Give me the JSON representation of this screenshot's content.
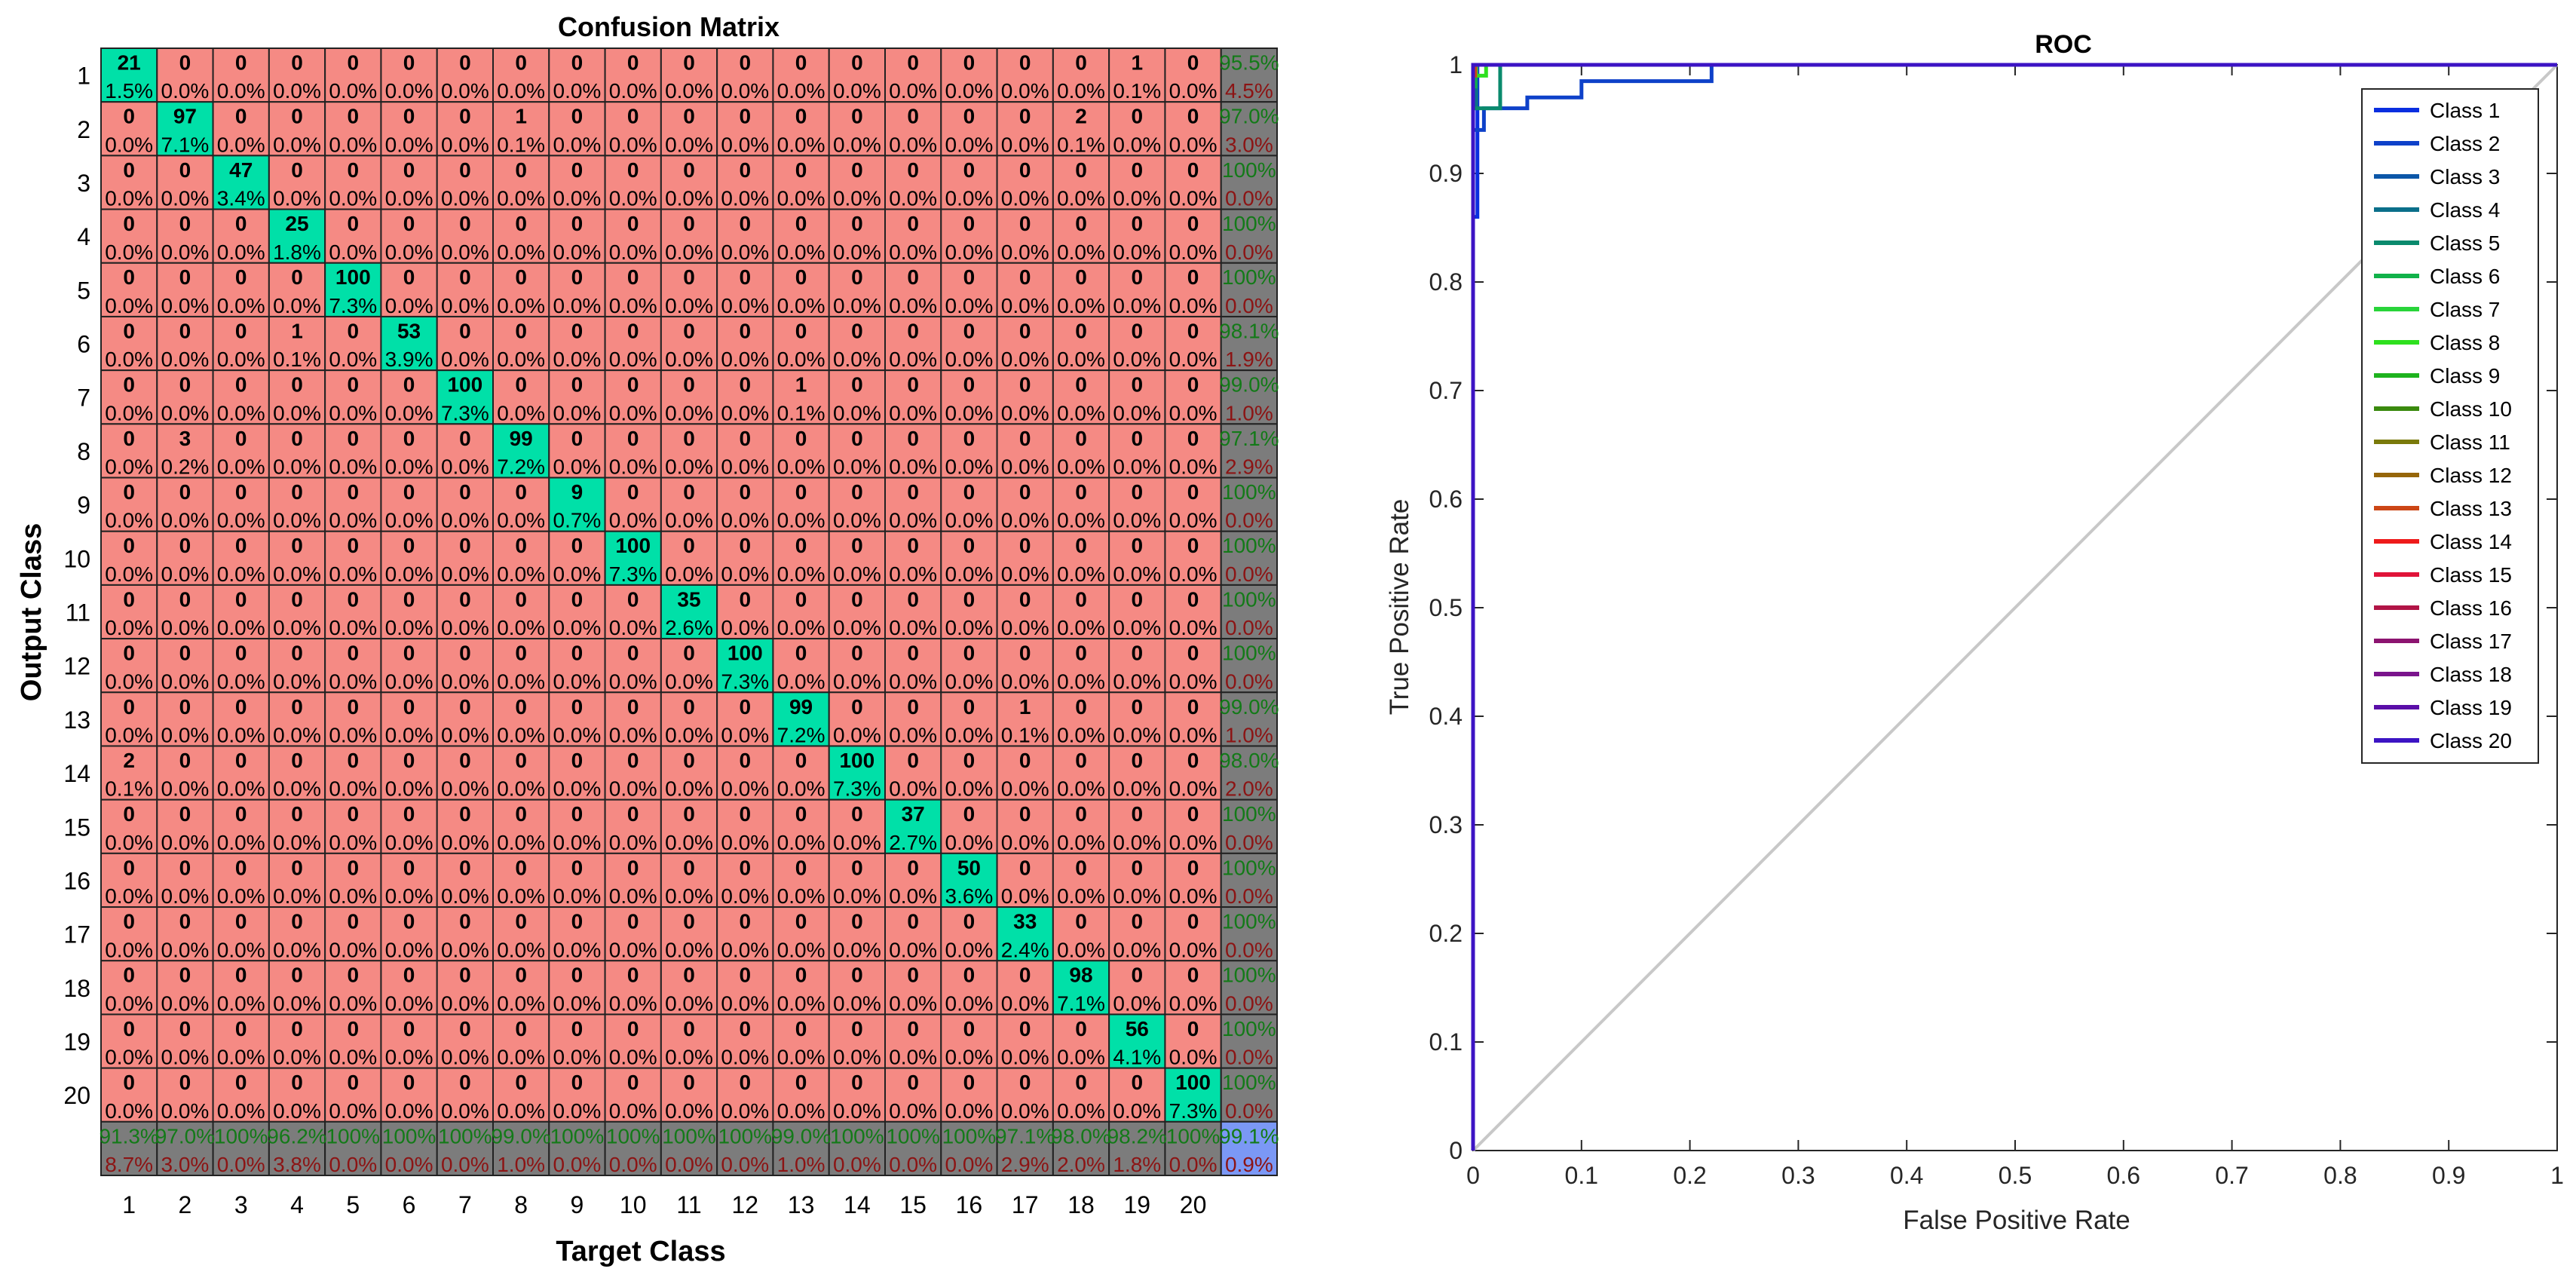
{
  "chart_data": [
    {
      "type": "heatmap",
      "title": "Confusion Matrix",
      "xlabel": "Target Class",
      "ylabel": "Output Class",
      "classes": [
        "1",
        "2",
        "3",
        "4",
        "5",
        "6",
        "7",
        "8",
        "9",
        "10",
        "11",
        "12",
        "13",
        "14",
        "15",
        "16",
        "17",
        "18",
        "19",
        "20"
      ],
      "cell_text": [
        [
          "21",
          "0",
          "0",
          "0",
          "0",
          "0",
          "0",
          "0",
          "0",
          "0",
          "0",
          "0",
          "0",
          "0",
          "0",
          "0",
          "0",
          "0",
          "1",
          "0"
        ],
        [
          "0",
          "97",
          "0",
          "0",
          "0",
          "0",
          "0",
          "1",
          "0",
          "0",
          "0",
          "0",
          "0",
          "0",
          "0",
          "0",
          "0",
          "2",
          "0",
          "0"
        ],
        [
          "0",
          "0",
          "47",
          "0",
          "0",
          "0",
          "0",
          "0",
          "0",
          "0",
          "0",
          "0",
          "0",
          "0",
          "0",
          "0",
          "0",
          "0",
          "0",
          "0"
        ],
        [
          "0",
          "0",
          "0",
          "25",
          "0",
          "0",
          "0",
          "0",
          "0",
          "0",
          "0",
          "0",
          "0",
          "0",
          "0",
          "0",
          "0",
          "0",
          "0",
          "0"
        ],
        [
          "0",
          "0",
          "0",
          "0",
          "100",
          "0",
          "0",
          "0",
          "0",
          "0",
          "0",
          "0",
          "0",
          "0",
          "0",
          "0",
          "0",
          "0",
          "0",
          "0"
        ],
        [
          "0",
          "0",
          "0",
          "1",
          "0",
          "53",
          "0",
          "0",
          "0",
          "0",
          "0",
          "0",
          "0",
          "0",
          "0",
          "0",
          "0",
          "0",
          "0",
          "0"
        ],
        [
          "0",
          "0",
          "0",
          "0",
          "0",
          "0",
          "100",
          "0",
          "0",
          "0",
          "0",
          "0",
          "1",
          "0",
          "0",
          "0",
          "0",
          "0",
          "0",
          "0"
        ],
        [
          "0",
          "3",
          "0",
          "0",
          "0",
          "0",
          "0",
          "99",
          "0",
          "0",
          "0",
          "0",
          "0",
          "0",
          "0",
          "0",
          "0",
          "0",
          "0",
          "0"
        ],
        [
          "0",
          "0",
          "0",
          "0",
          "0",
          "0",
          "0",
          "0",
          "9",
          "0",
          "0",
          "0",
          "0",
          "0",
          "0",
          "0",
          "0",
          "0",
          "0",
          "0"
        ],
        [
          "0",
          "0",
          "0",
          "0",
          "0",
          "0",
          "0",
          "0",
          "0",
          "100",
          "0",
          "0",
          "0",
          "0",
          "0",
          "0",
          "0",
          "0",
          "0",
          "0"
        ],
        [
          "0",
          "0",
          "0",
          "0",
          "0",
          "0",
          "0",
          "0",
          "0",
          "0",
          "35",
          "0",
          "0",
          "0",
          "0",
          "0",
          "0",
          "0",
          "0",
          "0"
        ],
        [
          "0",
          "0",
          "0",
          "0",
          "0",
          "0",
          "0",
          "0",
          "0",
          "0",
          "0",
          "100",
          "0",
          "0",
          "0",
          "0",
          "0",
          "0",
          "0",
          "0"
        ],
        [
          "0",
          "0",
          "0",
          "0",
          "0",
          "0",
          "0",
          "0",
          "0",
          "0",
          "0",
          "0",
          "99",
          "0",
          "0",
          "0",
          "1",
          "0",
          "0",
          "0"
        ],
        [
          "2",
          "0",
          "0",
          "0",
          "0",
          "0",
          "0",
          "0",
          "0",
          "0",
          "0",
          "0",
          "0",
          "100",
          "0",
          "0",
          "0",
          "0",
          "0",
          "0"
        ],
        [
          "0",
          "0",
          "0",
          "0",
          "0",
          "0",
          "0",
          "0",
          "0",
          "0",
          "0",
          "0",
          "0",
          "0",
          "37",
          "0",
          "0",
          "0",
          "0",
          "0"
        ],
        [
          "0",
          "0",
          "0",
          "0",
          "0",
          "0",
          "0",
          "0",
          "0",
          "0",
          "0",
          "0",
          "0",
          "0",
          "0",
          "50",
          "0",
          "0",
          "0",
          "0"
        ],
        [
          "0",
          "0",
          "0",
          "0",
          "0",
          "0",
          "0",
          "0",
          "0",
          "0",
          "0",
          "0",
          "0",
          "0",
          "0",
          "0",
          "33",
          "0",
          "0",
          "0"
        ],
        [
          "0",
          "0",
          "0",
          "0",
          "0",
          "0",
          "0",
          "0",
          "0",
          "0",
          "0",
          "0",
          "0",
          "0",
          "0",
          "0",
          "0",
          "98",
          "0",
          "0"
        ],
        [
          "0",
          "0",
          "0",
          "0",
          "0",
          "0",
          "0",
          "0",
          "0",
          "0",
          "0",
          "0",
          "0",
          "0",
          "0",
          "0",
          "0",
          "0",
          "56",
          "0"
        ],
        [
          "0",
          "0",
          "0",
          "0",
          "0",
          "0",
          "0",
          "0",
          "0",
          "0",
          "0",
          "0",
          "0",
          "0",
          "0",
          "0",
          "0",
          "0",
          "0",
          "100"
        ]
      ],
      "cell_pct_diag": [
        "1.5%",
        "7.1%",
        "3.4%",
        "1.8%",
        "7.3%",
        "3.9%",
        "7.3%",
        "7.2%",
        "0.7%",
        "7.3%",
        "2.6%",
        "7.3%",
        "7.2%",
        "7.3%",
        "2.7%",
        "3.6%",
        "2.4%",
        "7.1%",
        "4.1%",
        "7.3%"
      ],
      "cell_pct_offdiag_zero": "0.0%",
      "cell_pct_offdiag_nonzero": {
        "1": "0.1%",
        "2": "0.1%",
        "3": "0.2%"
      },
      "row_accuracy": [
        "95.5%",
        "97.0%",
        "100%",
        "100%",
        "100%",
        "98.1%",
        "99.0%",
        "97.1%",
        "100%",
        "100%",
        "100%",
        "100%",
        "99.0%",
        "98.0%",
        "100%",
        "100%",
        "100%",
        "100%",
        "100%",
        "100%"
      ],
      "row_error": [
        "4.5%",
        "3.0%",
        "0.0%",
        "0.0%",
        "0.0%",
        "1.9%",
        "1.0%",
        "2.9%",
        "0.0%",
        "0.0%",
        "0.0%",
        "0.0%",
        "1.0%",
        "2.0%",
        "0.0%",
        "0.0%",
        "0.0%",
        "0.0%",
        "0.0%",
        "0.0%"
      ],
      "col_accuracy": [
        "91.3%",
        "97.0%",
        "100%",
        "96.2%",
        "100%",
        "100%",
        "100%",
        "99.0%",
        "100%",
        "100%",
        "100%",
        "100%",
        "99.0%",
        "100%",
        "100%",
        "100%",
        "97.1%",
        "98.0%",
        "98.2%",
        "100%"
      ],
      "col_error": [
        "8.7%",
        "3.0%",
        "0.0%",
        "3.8%",
        "0.0%",
        "0.0%",
        "0.0%",
        "1.0%",
        "0.0%",
        "0.0%",
        "0.0%",
        "0.0%",
        "1.0%",
        "0.0%",
        "0.0%",
        "0.0%",
        "2.9%",
        "2.0%",
        "1.8%",
        "0.0%"
      ],
      "overall_accuracy": "99.1%",
      "overall_error": "0.9%",
      "colors": {
        "diagonal": "#00e0a8",
        "offdiagonal": "#f58a84",
        "summary": "#7c7c7c",
        "overall": "#7b98f5",
        "good_text": "#137a18",
        "bad_text": "#8c1414"
      }
    },
    {
      "type": "line",
      "title": "ROC",
      "xlabel": "False Positive Rate",
      "ylabel": "True Positive Rate",
      "xlim": [
        0,
        1
      ],
      "ylim": [
        0,
        1
      ],
      "x_ticks": [
        "0",
        "0.1",
        "0.2",
        "0.3",
        "0.4",
        "0.5",
        "0.6",
        "0.7",
        "0.8",
        "0.9",
        "1"
      ],
      "y_ticks": [
        "0",
        "0.1",
        "0.2",
        "0.3",
        "0.4",
        "0.5",
        "0.6",
        "0.7",
        "0.8",
        "0.9",
        "1"
      ],
      "legend_position": "top-right",
      "diagonal_color": "#c8c8c8",
      "series": [
        {
          "name": "Class 1",
          "color": "#0a2ee0",
          "x": [
            0,
            0,
            0.004,
            0.004,
            1
          ],
          "y": [
            0,
            0.86,
            0.86,
            1,
            1
          ]
        },
        {
          "name": "Class 2",
          "color": "#0e41c9",
          "x": [
            0,
            0,
            0.01,
            0.01,
            0.05,
            0.05,
            0.1,
            0.1,
            0.22,
            0.22,
            1
          ],
          "y": [
            0,
            0.94,
            0.94,
            0.96,
            0.96,
            0.97,
            0.97,
            0.985,
            0.985,
            1,
            1
          ]
        },
        {
          "name": "Class 3",
          "color": "#0c57a8",
          "x": [
            0,
            0,
            1
          ],
          "y": [
            0,
            1,
            1
          ]
        },
        {
          "name": "Class 4",
          "color": "#0b6f8a",
          "x": [
            0,
            0,
            0.003,
            0.003,
            1
          ],
          "y": [
            0,
            0.96,
            0.96,
            1,
            1
          ]
        },
        {
          "name": "Class 5",
          "color": "#0a8a6d",
          "x": [
            0,
            0,
            0.025,
            0.025,
            1
          ],
          "y": [
            0,
            0.96,
            0.96,
            1,
            1
          ]
        },
        {
          "name": "Class 6",
          "color": "#11b24a",
          "x": [
            0,
            0,
            0.002,
            0.002,
            1
          ],
          "y": [
            0,
            0.98,
            0.98,
            1,
            1
          ]
        },
        {
          "name": "Class 7",
          "color": "#29d43a",
          "x": [
            0,
            0,
            0.003,
            0.003,
            1
          ],
          "y": [
            0,
            0.99,
            0.99,
            1,
            1
          ]
        },
        {
          "name": "Class 8",
          "color": "#2ee01e",
          "x": [
            0,
            0,
            0.012,
            0.012,
            1
          ],
          "y": [
            0,
            0.99,
            0.99,
            1,
            1
          ]
        },
        {
          "name": "Class 9",
          "color": "#1eb31e",
          "x": [
            0,
            0,
            1
          ],
          "y": [
            0,
            1,
            1
          ]
        },
        {
          "name": "Class 10",
          "color": "#3a8a0e",
          "x": [
            0,
            0,
            1
          ],
          "y": [
            0,
            1,
            1
          ]
        },
        {
          "name": "Class 11",
          "color": "#7a7a0a",
          "x": [
            0,
            0,
            1
          ],
          "y": [
            0,
            1,
            1
          ]
        },
        {
          "name": "Class 12",
          "color": "#96660a",
          "x": [
            0,
            0,
            1
          ],
          "y": [
            0,
            1,
            1
          ]
        },
        {
          "name": "Class 13",
          "color": "#cc4616",
          "x": [
            0,
            0,
            0.002,
            0.002,
            1
          ],
          "y": [
            0,
            0.99,
            0.99,
            1,
            1
          ]
        },
        {
          "name": "Class 14",
          "color": "#ee1a1a",
          "x": [
            0,
            0,
            1
          ],
          "y": [
            0,
            1,
            1
          ]
        },
        {
          "name": "Class 15",
          "color": "#e01439",
          "x": [
            0,
            0,
            1
          ],
          "y": [
            0,
            1,
            1
          ]
        },
        {
          "name": "Class 16",
          "color": "#b11446",
          "x": [
            0,
            0,
            1
          ],
          "y": [
            0,
            1,
            1
          ]
        },
        {
          "name": "Class 17",
          "color": "#8c1470",
          "x": [
            0,
            0,
            1
          ],
          "y": [
            0,
            1,
            1
          ]
        },
        {
          "name": "Class 18",
          "color": "#7a148c",
          "x": [
            0,
            0,
            1
          ],
          "y": [
            0,
            1,
            1
          ]
        },
        {
          "name": "Class 19",
          "color": "#5a0ea8",
          "x": [
            0,
            0,
            1
          ],
          "y": [
            0,
            1,
            1
          ]
        },
        {
          "name": "Class 20",
          "color": "#3c14c4",
          "x": [
            0,
            0,
            1
          ],
          "y": [
            0,
            1,
            1
          ]
        }
      ]
    }
  ]
}
